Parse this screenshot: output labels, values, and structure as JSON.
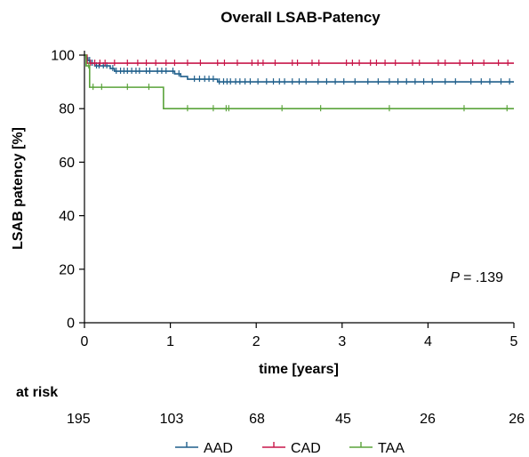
{
  "chart_data": {
    "type": "line",
    "subtype": "kaplan-meier",
    "title": "Overall LSAB-Patency",
    "xlabel": "time [years]",
    "ylabel": "LSAB patency [%]",
    "xlim": [
      0,
      5
    ],
    "ylim": [
      0,
      100
    ],
    "x_ticks": [
      "0",
      "1",
      "2",
      "3",
      "4",
      "5"
    ],
    "y_ticks": [
      "0",
      "20",
      "40",
      "60",
      "80",
      "100"
    ],
    "grid": false,
    "legend_position": "bottom",
    "annotation": {
      "p_label": "P",
      "p_value": "= .139"
    },
    "at_risk": {
      "label": "at risk",
      "values": [
        "195",
        "103",
        "68",
        "45",
        "26",
        "26"
      ]
    },
    "series": [
      {
        "name": "AAD",
        "color": "#1f5f8b",
        "steps": [
          [
            0,
            100
          ],
          [
            0.02,
            99
          ],
          [
            0.04,
            98
          ],
          [
            0.07,
            97
          ],
          [
            0.12,
            96
          ],
          [
            0.3,
            95
          ],
          [
            0.35,
            94
          ],
          [
            1.05,
            93
          ],
          [
            1.12,
            92
          ],
          [
            1.2,
            91
          ],
          [
            1.55,
            90
          ],
          [
            5,
            90
          ]
        ],
        "censored": [
          0.06,
          0.09,
          0.14,
          0.17,
          0.22,
          0.26,
          0.33,
          0.37,
          0.42,
          0.46,
          0.5,
          0.55,
          0.6,
          0.64,
          0.72,
          0.76,
          0.85,
          0.9,
          0.95,
          1.03,
          1.1,
          1.28,
          1.34,
          1.4,
          1.45,
          1.5,
          1.57,
          1.62,
          1.66,
          1.7,
          1.76,
          1.81,
          1.87,
          1.93,
          2.02,
          2.12,
          2.2,
          2.27,
          2.33,
          2.42,
          2.5,
          2.58,
          2.72,
          2.82,
          2.92,
          3.02,
          3.15,
          3.3,
          3.42,
          3.55,
          3.65,
          3.75,
          3.85,
          3.95,
          4.05,
          4.2,
          4.32,
          4.5,
          4.62,
          4.72,
          4.85,
          4.95
        ]
      },
      {
        "name": "CAD",
        "color": "#c8174a",
        "steps": [
          [
            0,
            100
          ],
          [
            0.03,
            97
          ],
          [
            5,
            97
          ]
        ],
        "censored": [
          0.07,
          0.12,
          0.18,
          0.24,
          0.35,
          0.5,
          0.62,
          0.72,
          0.83,
          0.95,
          1.05,
          1.2,
          1.35,
          1.55,
          1.63,
          1.78,
          1.95,
          2.02,
          2.08,
          2.22,
          2.42,
          2.48,
          2.65,
          2.73,
          3.05,
          3.12,
          3.2,
          3.33,
          3.4,
          3.5,
          3.62,
          3.82,
          3.9,
          4.12,
          4.2,
          4.37,
          4.52,
          4.65,
          4.82,
          4.93
        ]
      },
      {
        "name": "TAA",
        "color": "#5aa33a",
        "steps": [
          [
            0,
            100
          ],
          [
            0.02,
            96
          ],
          [
            0.06,
            88
          ],
          [
            0.92,
            88
          ],
          [
            0.92,
            80
          ],
          [
            5,
            80
          ]
        ],
        "censored": [
          0.05,
          0.1,
          0.2,
          0.5,
          0.75,
          1.2,
          1.5,
          1.65,
          1.68,
          2.3,
          2.75,
          3.55,
          4.42,
          4.92
        ]
      }
    ]
  }
}
